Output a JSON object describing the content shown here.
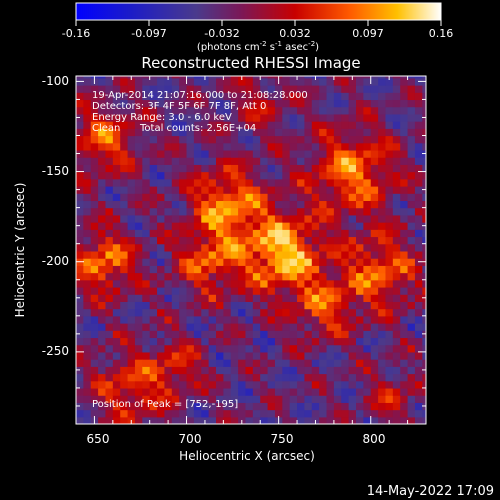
{
  "chart_data": {
    "type": "heatmap",
    "title": "Reconstructed RHESSI Image",
    "xlabel": "Heliocentric X (arcsec)",
    "ylabel": "Heliocentric Y (arcsec)",
    "xlim": [
      640,
      830
    ],
    "ylim": [
      -290,
      -97
    ],
    "x_ticks": [
      650,
      700,
      750,
      800
    ],
    "y_ticks": [
      -100,
      -150,
      -200,
      -250
    ],
    "colorbar": {
      "range": [
        -0.16,
        0.16
      ],
      "ticks": [
        "-0.16",
        "-0.097",
        "-0.032",
        "0.032",
        "0.097",
        "0.16"
      ],
      "unit_main": "(photons cm",
      "unit_sup1": "-2",
      "unit_mid1": " s",
      "unit_sup2": "-1",
      "unit_mid2": " asec",
      "unit_sup3": "-2",
      "unit_end": ")"
    },
    "annotations": {
      "time": "19-Apr-2014 21:07:16.000 to 21:08:28.000",
      "detectors": "Detectors: 3F 4F 5F 6F 7F 8F, Att 0",
      "energy": "Energy Range: 3.0 - 6.0 keV",
      "method": "Clean",
      "counts": "Total counts: 2.56E+04",
      "peak": "Position of Peak = [752,-195]"
    },
    "sources": [
      {
        "x": 752,
        "y": -195,
        "amp": 0.16,
        "sigma": 15
      },
      {
        "x": 722,
        "y": -168,
        "amp": 0.13,
        "sigma": 14
      },
      {
        "x": 712,
        "y": -200,
        "amp": 0.1,
        "sigma": 12
      },
      {
        "x": 790,
        "y": -150,
        "amp": 0.12,
        "sigma": 16
      },
      {
        "x": 805,
        "y": -205,
        "amp": 0.11,
        "sigma": 14
      },
      {
        "x": 775,
        "y": -225,
        "amp": 0.09,
        "sigma": 12
      },
      {
        "x": 655,
        "y": -200,
        "amp": 0.12,
        "sigma": 12
      },
      {
        "x": 655,
        "y": -132,
        "amp": 0.1,
        "sigma": 13
      },
      {
        "x": 670,
        "y": -270,
        "amp": 0.09,
        "sigma": 14
      },
      {
        "x": 695,
        "y": -258,
        "amp": 0.07,
        "sigma": 10
      },
      {
        "x": 740,
        "y": -112,
        "amp": 0.05,
        "sigma": 12
      },
      {
        "x": 812,
        "y": -275,
        "amp": 0.06,
        "sigma": 10
      }
    ],
    "background_level": -0.035
  },
  "footer": {
    "date": "14-May-2022 17:09"
  }
}
